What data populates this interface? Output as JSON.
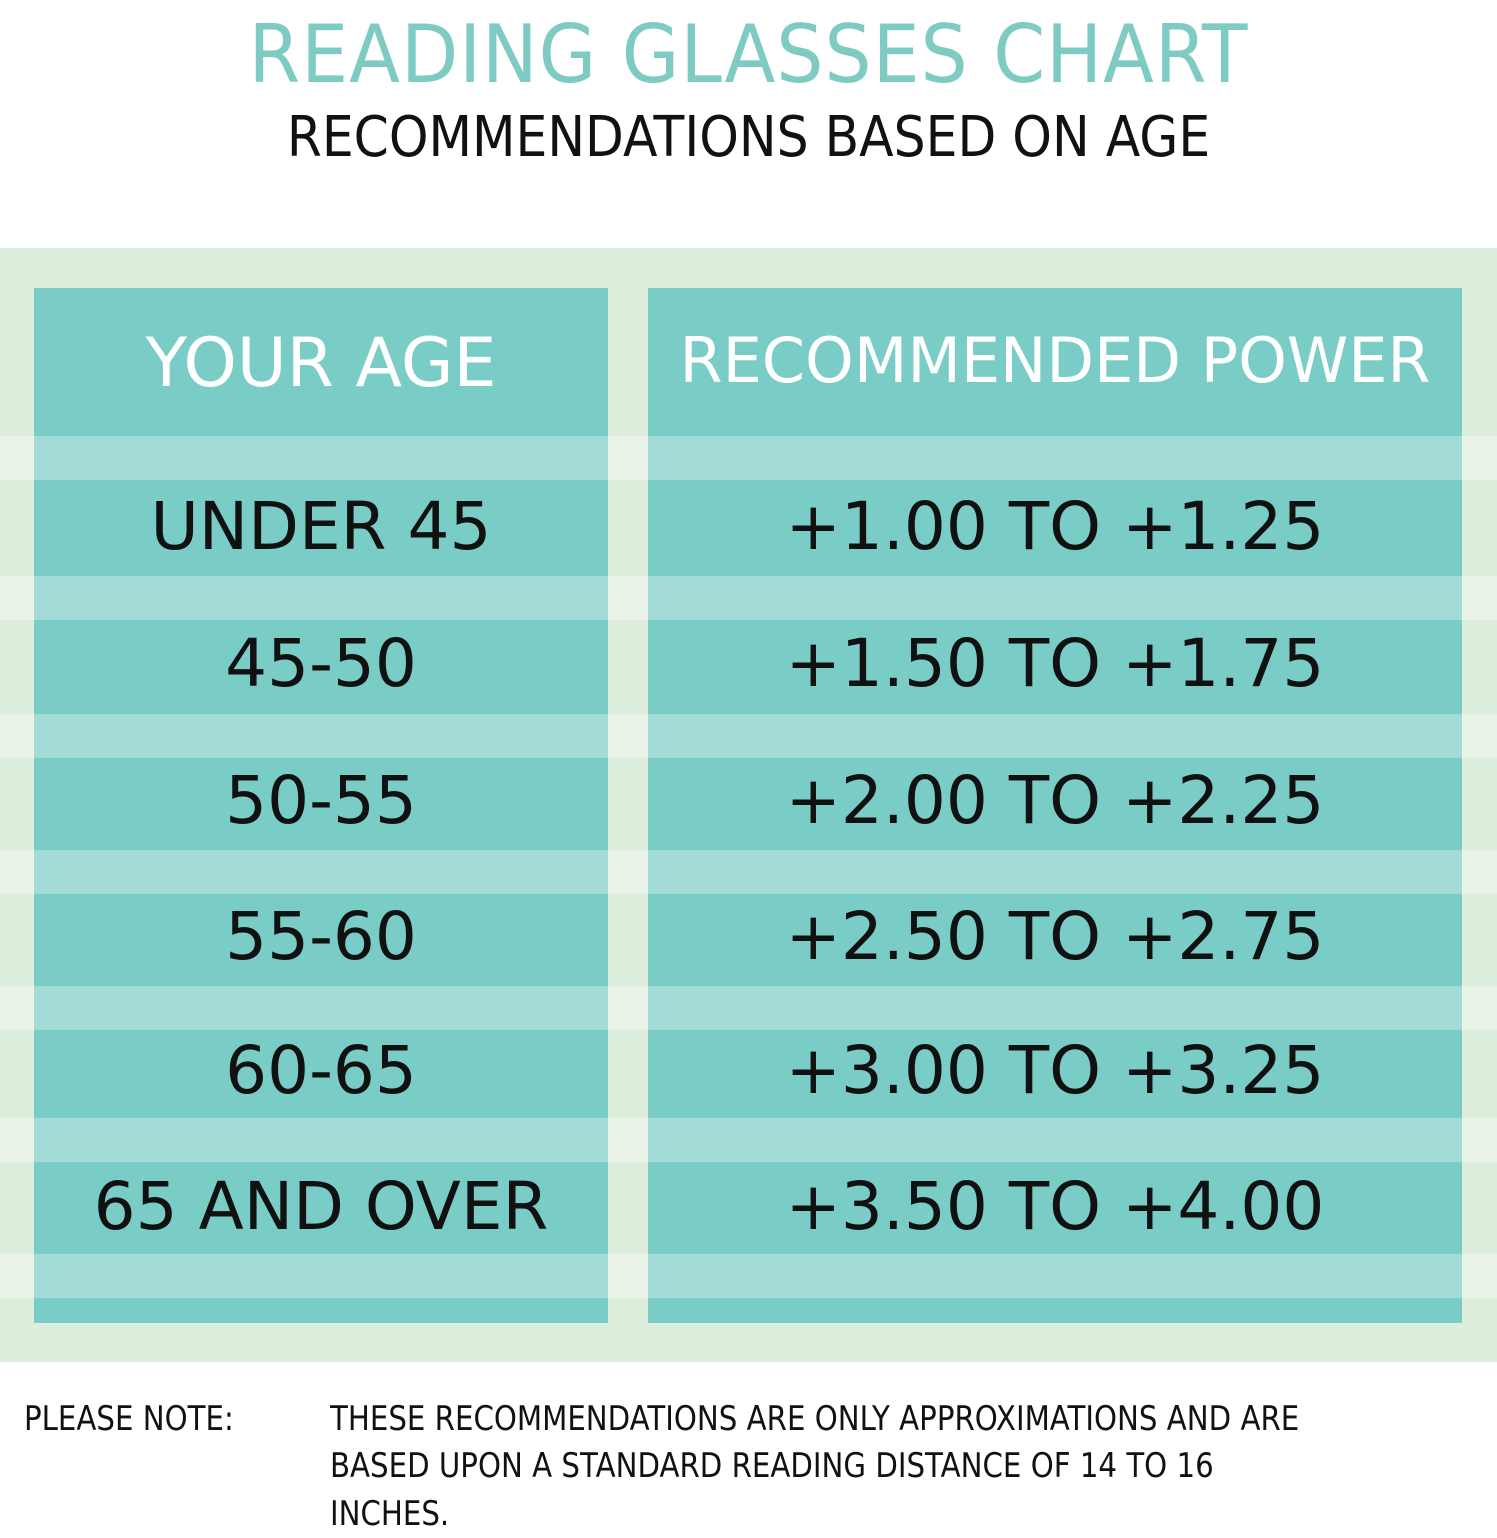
{
  "header": {
    "title": "READING GLASSES CHART",
    "subtitle": "RECOMMENDATIONS BASED ON AGE"
  },
  "table": {
    "columns": [
      "YOUR AGE",
      "RECOMMENDED POWER"
    ],
    "rows": [
      {
        "age": "UNDER 45",
        "power": "+1.00 TO +1.25"
      },
      {
        "age": "45-50",
        "power": "+1.50 TO +1.75"
      },
      {
        "age": "50-55",
        "power": "+2.00 TO +2.25"
      },
      {
        "age": "55-60",
        "power": "+2.50 TO +2.75"
      },
      {
        "age": "60-65",
        "power": "+3.00 TO +3.25"
      },
      {
        "age": "65 AND OVER",
        "power": "+3.50 TO +4.00"
      }
    ]
  },
  "note": {
    "label": "PLEASE NOTE:",
    "line1": "THESE RECOMMENDATIONS ARE ONLY APPROXIMATIONS AND ARE",
    "line2": "BASED UPON A STANDARD READING DISTANCE OF 14 TO 16 INCHES."
  },
  "colors": {
    "accent": "#7ecbc4",
    "cell": "#7accc7",
    "stripe": "#a3dbd6",
    "panel": "#deeedc"
  }
}
